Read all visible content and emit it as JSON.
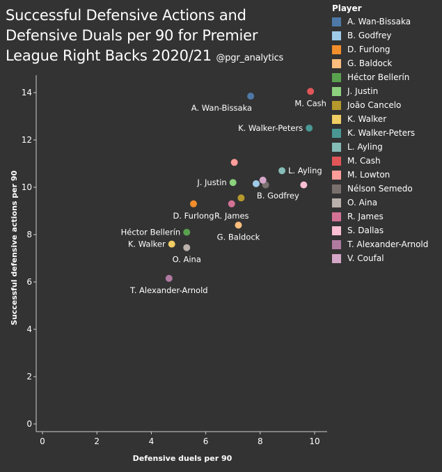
{
  "header": {
    "title": "Successful Defensive Actions and Defensive Duals per 90 for Premier League Right Backs 2020/21",
    "handle": "@pgr_analytics"
  },
  "legend": {
    "title": "Player"
  },
  "chart_data": {
    "type": "scatter",
    "title": "Successful Defensive Actions and Defensive Duals per 90 for Premier League Right Backs 2020/21",
    "xlabel": "Defensive duels per 90",
    "ylabel": "Successful defensive actions per 90",
    "xlim": [
      0,
      10.5
    ],
    "ylim": [
      0,
      15
    ],
    "xticks": [
      "0",
      "2",
      "4",
      "6",
      "8",
      "10"
    ],
    "yticks": [
      "0",
      "2",
      "4",
      "6",
      "8",
      "10",
      "12",
      "14"
    ],
    "grid": false,
    "legend_position": "right",
    "points": [
      {
        "name": "A. Wan-Bissaka",
        "label": "A. Wan-Bissaka",
        "x": 7.65,
        "y": 13.85,
        "color": "#4e79a7",
        "label_pos": "below-left"
      },
      {
        "name": "B. Godfrey",
        "label": "B. Godfrey",
        "x": 7.85,
        "y": 10.15,
        "color": "#a0cbe8",
        "label_pos": "below-right"
      },
      {
        "name": "D. Furlong",
        "label": "D. Furlong",
        "x": 5.55,
        "y": 9.3,
        "color": "#f28e2b",
        "label_pos": "below"
      },
      {
        "name": "G. Baldock",
        "label": "G. Baldock",
        "x": 7.2,
        "y": 8.4,
        "color": "#ffbe7d",
        "label_pos": "below"
      },
      {
        "name": "Héctor Bellerín",
        "label": "Héctor Bellerín",
        "x": 5.3,
        "y": 8.1,
        "color": "#59a14f",
        "label_pos": "left"
      },
      {
        "name": "J. Justin",
        "label": "J. Justin",
        "x": 7.0,
        "y": 10.2,
        "color": "#8cd17d",
        "label_pos": "left"
      },
      {
        "name": "João Cancelo",
        "label": "",
        "x": 7.3,
        "y": 9.55,
        "color": "#b6992d",
        "label_pos": "none"
      },
      {
        "name": "K. Walker",
        "label": "K. Walker",
        "x": 4.75,
        "y": 7.6,
        "color": "#f1ce63",
        "label_pos": "left"
      },
      {
        "name": "K. Walker-Peters",
        "label": "K. Walker-Peters",
        "x": 9.8,
        "y": 12.5,
        "color": "#499894",
        "label_pos": "left"
      },
      {
        "name": "L. Ayling",
        "label": "L. Ayling",
        "x": 8.8,
        "y": 10.7,
        "color": "#86bcb6",
        "label_pos": "right"
      },
      {
        "name": "M. Cash",
        "label": "M. Cash",
        "x": 9.85,
        "y": 14.05,
        "color": "#e15759",
        "label_pos": "below"
      },
      {
        "name": "M. Lowton",
        "label": "",
        "x": 7.05,
        "y": 11.05,
        "color": "#ff9d9a",
        "label_pos": "none"
      },
      {
        "name": "Nélson Semedo",
        "label": "",
        "x": 8.2,
        "y": 10.1,
        "color": "#79706e",
        "label_pos": "none"
      },
      {
        "name": "O. Aina",
        "label": "O. Aina",
        "x": 5.3,
        "y": 7.45,
        "color": "#bab0ac",
        "label_pos": "below"
      },
      {
        "name": "R. James",
        "label": "R. James",
        "x": 6.95,
        "y": 9.3,
        "color": "#d37295",
        "label_pos": "below"
      },
      {
        "name": "S. Dallas",
        "label": "",
        "x": 9.6,
        "y": 10.1,
        "color": "#fabfd2",
        "label_pos": "none"
      },
      {
        "name": "T. Alexander-Arnold",
        "label": "T. Alexander-Arnold",
        "x": 4.65,
        "y": 6.15,
        "color": "#b07aa1",
        "label_pos": "below"
      },
      {
        "name": "V. Coufal",
        "label": "",
        "x": 8.1,
        "y": 10.3,
        "color": "#d4a6c8",
        "label_pos": "none"
      }
    ]
  }
}
